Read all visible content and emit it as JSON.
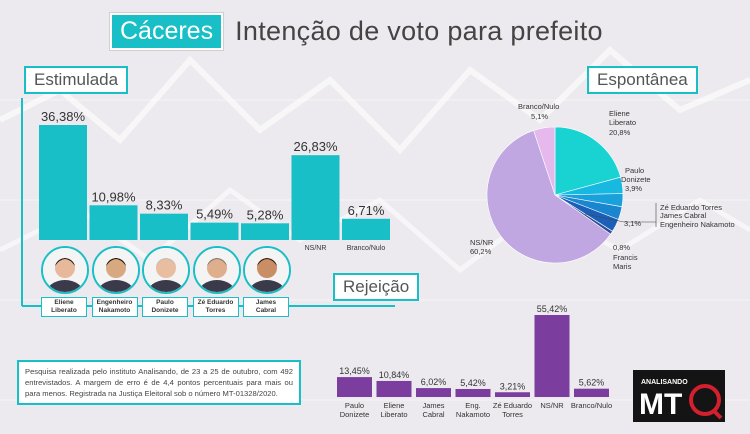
{
  "header": {
    "city": "Cáceres",
    "title": "Intenção de voto para prefeito"
  },
  "sections": {
    "estimulada": "Estimulada",
    "espontanea": "Espontânea",
    "rejeicao": "Rejeição"
  },
  "colors": {
    "teal": "#19bfc6",
    "purple": "#7b3d9e",
    "lavender": "#c1a7e2"
  },
  "candidates": [
    {
      "label_l1": "Eliene",
      "label_l2": "Liberato",
      "hair": "#1a1a1a",
      "skin": "#e7b89a"
    },
    {
      "label_l1": "Engenheiro",
      "label_l2": "Nakamoto",
      "hair": "#111111",
      "skin": "#d8a880"
    },
    {
      "label_l1": "Paulo",
      "label_l2": "Donizete",
      "hair": "#bdbdbd",
      "skin": "#e9bd9f"
    },
    {
      "label_l1": "Zé Eduardo",
      "label_l2": "Torres",
      "hair": "#7a7a7a",
      "skin": "#dfae8c"
    },
    {
      "label_l1": "James",
      "label_l2": "Cabral",
      "hair": "#2a1a10",
      "skin": "#c98e65"
    }
  ],
  "note": "Pesquisa realizada pelo instituto Analisando, de 23 a 25 de outubro, com 492 entrevistados. A margem de erro é de 4,4 pontos percentuais para mais ou para menos. Registrada na Justiça Eleitoral sob o número MT-01328/2020.",
  "logo": {
    "small": "ANALISANDO",
    "big": "MT"
  },
  "chart_data": [
    {
      "type": "bar",
      "title": "Estimulada",
      "categories": [
        "Eliene Liberato",
        "Engenheiro Nakamoto",
        "Paulo Donizete",
        "Zé Eduardo Torres",
        "James Cabral",
        "NS/NR",
        "Branco/Nulo"
      ],
      "tick_labels": [
        "",
        "",
        "",
        "",
        "",
        "NS/NR",
        "Branco/Nulo"
      ],
      "values": [
        36.38,
        10.98,
        8.33,
        5.49,
        5.28,
        26.83,
        6.71
      ],
      "value_labels": [
        "36,38%",
        "10,98%",
        "8,33%",
        "5,49%",
        "5,28%",
        "26,83%",
        "6,71%"
      ],
      "ylim": [
        0,
        36.38
      ]
    },
    {
      "type": "pie",
      "title": "Espontânea",
      "slices": [
        {
          "name": "Eliene Liberato",
          "l1": "Eliene",
          "l2": "Liberato",
          "pct_label": "20,8%",
          "value": 20.8,
          "color": "#19d3d3"
        },
        {
          "name": "Paulo Donizete",
          "l1": "Paulo",
          "l2": "Donizete",
          "pct_label": "3,9%",
          "value": 3.9,
          "color": "#17b9e0"
        },
        {
          "name": "Zé Eduardo Torres",
          "l1": "Zé Eduardo Torres",
          "l2": "",
          "pct_label": "",
          "value": 3.1,
          "color": "#1aa1dc"
        },
        {
          "name": "James Cabral",
          "l1": "James Cabral",
          "l2": "",
          "pct_label": "",
          "value": 3.1,
          "color": "#1a86cf"
        },
        {
          "name": "Engenheiro Nakamoto",
          "l1": "Engenheiro Nakamoto",
          "l2": "",
          "pct_label": "3,1%",
          "value": 3.1,
          "color": "#1b5fb8"
        },
        {
          "name": "Francis Maris",
          "l1": "Francis",
          "l2": "Maris",
          "pct_label": "0,8%",
          "value": 0.8,
          "color": "#2e4d99"
        },
        {
          "name": "NS/NR",
          "l1": "NS/NR",
          "l2": "",
          "pct_label": "60,2%",
          "value": 60.2,
          "color": "#c1a7e2"
        },
        {
          "name": "Branco/Nulo",
          "l1": "Branco/Nulo",
          "l2": "",
          "pct_label": "5,1%",
          "value": 5.1,
          "color": "#e6b9ec"
        }
      ]
    },
    {
      "type": "bar",
      "title": "Rejeição",
      "categories": [
        "Paulo Donizete",
        "Eliene Liberato",
        "James Cabral",
        "Eng. Nakamoto",
        "Zé Eduardo Torres",
        "NS/NR",
        "Branco/Nulo"
      ],
      "tick_l1": [
        "Paulo",
        "Eliene",
        "James",
        "Eng.",
        "Zé Eduardo",
        "NS/NR",
        "Branco/Nulo"
      ],
      "tick_l2": [
        "Donizete",
        "Liberato",
        "Cabral",
        "Nakamoto",
        "Torres",
        "",
        ""
      ],
      "values": [
        13.45,
        10.84,
        6.02,
        5.42,
        3.21,
        55.42,
        5.62
      ],
      "value_labels": [
        "13,45%",
        "10,84%",
        "6,02%",
        "5,42%",
        "3,21%",
        "55,42%",
        "5,62%"
      ],
      "ylim": [
        0,
        55.42
      ]
    }
  ]
}
